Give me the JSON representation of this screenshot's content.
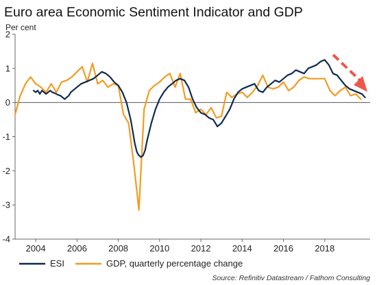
{
  "chart_data": {
    "type": "line",
    "title": "Euro area Economic Sentiment Indicator and GDP",
    "ylabel": "Per cent",
    "xlim": [
      2003.0,
      2020.2
    ],
    "ylim": [
      -4,
      2
    ],
    "yticks": [
      2,
      1,
      0,
      -1,
      -2,
      -3,
      -4
    ],
    "xticks": [
      2004,
      2006,
      2008,
      2010,
      2012,
      2014,
      2016,
      2018
    ],
    "grid": false,
    "zero_line": true,
    "legend_position": "bottom-left",
    "source": "Source: Refinitiv Datastream / Fathom Consulting",
    "colors": {
      "esi": "#0d2a4f",
      "gdp": "#f39c1f",
      "arrow": "#f0554b",
      "zero": "#555555",
      "axis": "#666666"
    },
    "series": [
      {
        "name": "ESI",
        "color": "#0d2a4f",
        "x": [
          2003.9,
          2004.0,
          2004.1,
          2004.2,
          2004.3,
          2004.4,
          2004.5,
          2004.6,
          2004.7,
          2004.8,
          2004.9,
          2005.0,
          2005.1,
          2005.2,
          2005.3,
          2005.4,
          2005.5,
          2005.6,
          2005.7,
          2005.8,
          2005.9,
          2006.0,
          2006.2,
          2006.4,
          2006.6,
          2006.8,
          2007.0,
          2007.2,
          2007.4,
          2007.6,
          2007.8,
          2008.0,
          2008.2,
          2008.4,
          2008.6,
          2008.8,
          2008.9,
          2009.0,
          2009.1,
          2009.2,
          2009.3,
          2009.4,
          2009.6,
          2009.8,
          2010.0,
          2010.2,
          2010.4,
          2010.6,
          2010.8,
          2011.0,
          2011.2,
          2011.4,
          2011.6,
          2011.8,
          2012.0,
          2012.2,
          2012.4,
          2012.6,
          2012.8,
          2013.0,
          2013.2,
          2013.4,
          2013.6,
          2013.8,
          2014.0,
          2014.2,
          2014.4,
          2014.6,
          2014.8,
          2015.0,
          2015.2,
          2015.4,
          2015.6,
          2015.8,
          2016.0,
          2016.2,
          2016.4,
          2016.6,
          2016.8,
          2017.0,
          2017.2,
          2017.4,
          2017.6,
          2017.8,
          2018.0,
          2018.2,
          2018.4,
          2018.6,
          2018.8,
          2019.0,
          2019.2,
          2019.4,
          2019.6,
          2019.8,
          2019.95
        ],
        "values": [
          0.35,
          0.3,
          0.35,
          0.25,
          0.35,
          0.3,
          0.25,
          0.3,
          0.35,
          0.3,
          0.28,
          0.25,
          0.22,
          0.2,
          0.15,
          0.1,
          0.15,
          0.2,
          0.3,
          0.35,
          0.4,
          0.45,
          0.55,
          0.6,
          0.65,
          0.7,
          0.8,
          0.9,
          0.85,
          0.75,
          0.6,
          0.5,
          0.3,
          0.0,
          -0.5,
          -1.2,
          -1.45,
          -1.55,
          -1.6,
          -1.55,
          -1.4,
          -1.1,
          -0.6,
          -0.2,
          0.1,
          0.3,
          0.45,
          0.55,
          0.65,
          0.7,
          0.65,
          0.45,
          0.1,
          -0.15,
          -0.3,
          -0.35,
          -0.45,
          -0.5,
          -0.7,
          -0.6,
          -0.4,
          -0.2,
          0.1,
          0.3,
          0.4,
          0.45,
          0.5,
          0.55,
          0.35,
          0.3,
          0.45,
          0.55,
          0.65,
          0.6,
          0.7,
          0.8,
          0.85,
          0.95,
          0.9,
          0.85,
          1.0,
          1.05,
          1.1,
          1.2,
          1.25,
          1.1,
          0.85,
          0.8,
          0.65,
          0.5,
          0.4,
          0.35,
          0.3,
          0.25,
          0.15
        ]
      },
      {
        "name": "GDP, quarterly percentage change",
        "color": "#f39c1f",
        "x": [
          2003.0,
          2003.25,
          2003.5,
          2003.75,
          2004.0,
          2004.25,
          2004.5,
          2004.75,
          2005.0,
          2005.25,
          2005.5,
          2005.75,
          2006.0,
          2006.25,
          2006.5,
          2006.75,
          2007.0,
          2007.25,
          2007.5,
          2007.75,
          2008.0,
          2008.25,
          2008.5,
          2008.75,
          2009.0,
          2009.25,
          2009.5,
          2009.75,
          2010.0,
          2010.25,
          2010.5,
          2010.75,
          2011.0,
          2011.25,
          2011.5,
          2011.75,
          2012.0,
          2012.25,
          2012.5,
          2012.75,
          2013.0,
          2013.25,
          2013.5,
          2013.75,
          2014.0,
          2014.25,
          2014.5,
          2014.75,
          2015.0,
          2015.25,
          2015.5,
          2015.75,
          2016.0,
          2016.25,
          2016.5,
          2016.75,
          2017.0,
          2017.25,
          2017.5,
          2017.75,
          2018.0,
          2018.25,
          2018.5,
          2018.75,
          2019.0,
          2019.25,
          2019.5,
          2019.75
        ],
        "values": [
          -0.35,
          0.2,
          0.55,
          0.75,
          0.55,
          0.45,
          0.3,
          0.55,
          0.3,
          0.6,
          0.65,
          0.75,
          0.9,
          1.05,
          0.6,
          1.15,
          0.55,
          0.65,
          0.45,
          0.55,
          0.5,
          -0.35,
          -0.6,
          -1.8,
          -3.15,
          -0.2,
          0.35,
          0.5,
          0.6,
          0.75,
          0.85,
          0.45,
          0.85,
          0.1,
          0.1,
          -0.3,
          -0.2,
          -0.35,
          -0.15,
          -0.45,
          -0.4,
          0.3,
          0.15,
          0.25,
          0.3,
          0.15,
          0.3,
          0.5,
          0.8,
          0.45,
          0.4,
          0.45,
          0.6,
          0.35,
          0.45,
          0.65,
          0.75,
          0.7,
          0.7,
          0.7,
          0.7,
          0.35,
          0.2,
          0.35,
          0.45,
          0.2,
          0.25,
          0.1
        ]
      }
    ]
  }
}
